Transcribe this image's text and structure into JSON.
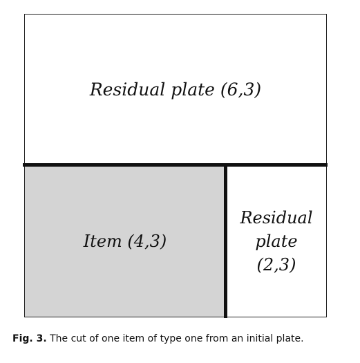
{
  "figure": {
    "regions": {
      "top_label": "Residual plate (6,3)",
      "item_label": "Item (4,3)",
      "right_label_lines": [
        "Residual",
        "plate",
        "(2,3)"
      ]
    },
    "colors": {
      "item_fill": "#d4d4d4",
      "cut_line": "#111111",
      "outline": "#222222"
    }
  },
  "caption": {
    "label": "Fig. 3.",
    "text": "The cut of one item of type one from an initial plate."
  }
}
